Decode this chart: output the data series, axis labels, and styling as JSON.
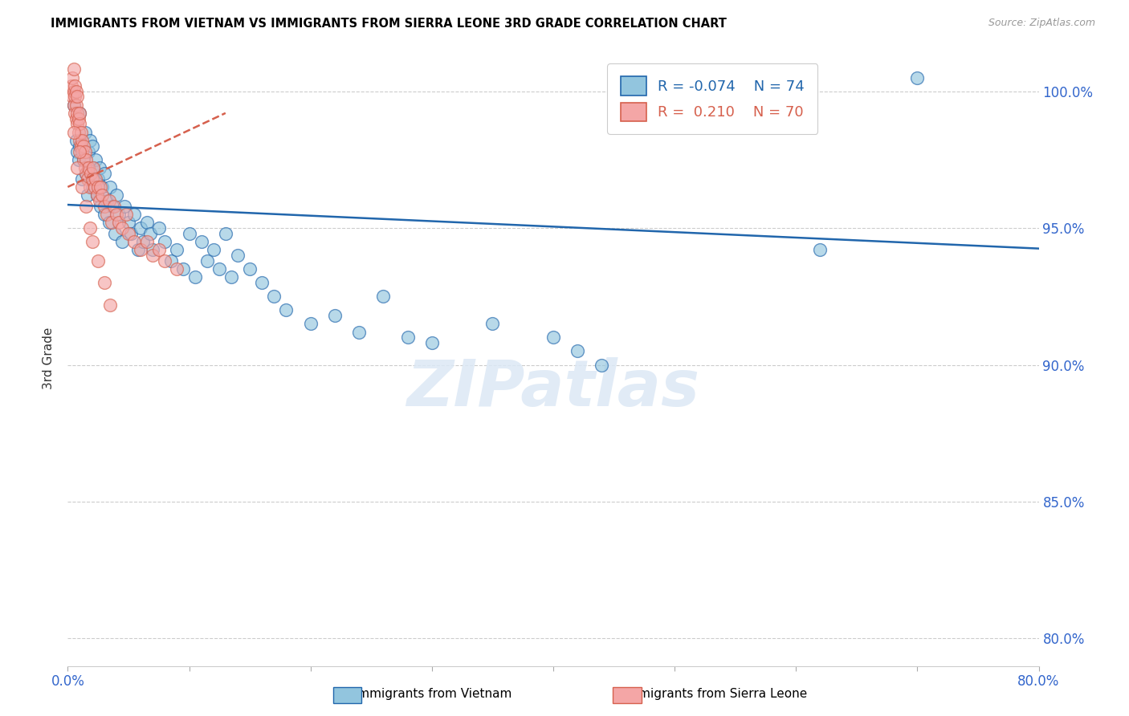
{
  "title": "IMMIGRANTS FROM VIETNAM VS IMMIGRANTS FROM SIERRA LEONE 3RD GRADE CORRELATION CHART",
  "source": "Source: ZipAtlas.com",
  "ylabel": "3rd Grade",
  "xlim": [
    0.0,
    0.8
  ],
  "ylim": [
    79.0,
    101.5
  ],
  "legend_blue_label": "Immigrants from Vietnam",
  "legend_pink_label": "Immigrants from Sierra Leone",
  "legend_r_blue": "-0.074",
  "legend_n_blue": "74",
  "legend_r_pink": "0.210",
  "legend_n_pink": "70",
  "color_blue": "#92C5DE",
  "color_pink": "#F4A6A6",
  "color_blue_dark": "#2166AC",
  "color_pink_dark": "#D6604D",
  "color_axis_ticks": "#3366CC",
  "watermark_text": "ZIPatlas",
  "blue_line_x0": 0.0,
  "blue_line_x1": 0.8,
  "blue_line_y0": 95.85,
  "blue_line_y1": 94.25,
  "pink_line_x0": 0.0,
  "pink_line_x1": 0.13,
  "pink_line_y0": 96.5,
  "pink_line_y1": 99.2,
  "blue_x": [
    0.005,
    0.007,
    0.008,
    0.009,
    0.01,
    0.01,
    0.012,
    0.013,
    0.014,
    0.015,
    0.016,
    0.017,
    0.018,
    0.019,
    0.02,
    0.02,
    0.021,
    0.022,
    0.023,
    0.024,
    0.025,
    0.026,
    0.027,
    0.028,
    0.03,
    0.03,
    0.032,
    0.034,
    0.035,
    0.037,
    0.039,
    0.04,
    0.042,
    0.045,
    0.047,
    0.05,
    0.052,
    0.055,
    0.058,
    0.06,
    0.062,
    0.065,
    0.068,
    0.07,
    0.075,
    0.08,
    0.085,
    0.09,
    0.095,
    0.1,
    0.105,
    0.11,
    0.115,
    0.12,
    0.125,
    0.13,
    0.135,
    0.14,
    0.15,
    0.16,
    0.17,
    0.18,
    0.2,
    0.22,
    0.24,
    0.26,
    0.28,
    0.3,
    0.35,
    0.4,
    0.42,
    0.44,
    0.62,
    0.7
  ],
  "blue_y": [
    99.5,
    98.2,
    97.8,
    97.5,
    98.0,
    99.2,
    96.8,
    97.5,
    98.5,
    97.0,
    96.2,
    97.8,
    98.2,
    97.0,
    96.5,
    98.0,
    97.2,
    96.8,
    97.5,
    96.2,
    96.8,
    97.2,
    95.8,
    96.5,
    95.5,
    97.0,
    96.0,
    95.2,
    96.5,
    95.8,
    94.8,
    96.2,
    95.5,
    94.5,
    95.8,
    95.2,
    94.8,
    95.5,
    94.2,
    95.0,
    94.5,
    95.2,
    94.8,
    94.2,
    95.0,
    94.5,
    93.8,
    94.2,
    93.5,
    94.8,
    93.2,
    94.5,
    93.8,
    94.2,
    93.5,
    94.8,
    93.2,
    94.0,
    93.5,
    93.0,
    92.5,
    92.0,
    91.5,
    91.8,
    91.2,
    92.5,
    91.0,
    90.8,
    91.5,
    91.0,
    90.5,
    90.0,
    94.2,
    100.5
  ],
  "pink_x": [
    0.003,
    0.004,
    0.004,
    0.005,
    0.005,
    0.005,
    0.006,
    0.006,
    0.006,
    0.007,
    0.007,
    0.007,
    0.008,
    0.008,
    0.008,
    0.009,
    0.009,
    0.01,
    0.01,
    0.01,
    0.011,
    0.011,
    0.012,
    0.012,
    0.013,
    0.013,
    0.014,
    0.014,
    0.015,
    0.015,
    0.016,
    0.017,
    0.018,
    0.019,
    0.02,
    0.021,
    0.022,
    0.023,
    0.024,
    0.025,
    0.026,
    0.027,
    0.028,
    0.03,
    0.032,
    0.034,
    0.036,
    0.038,
    0.04,
    0.042,
    0.045,
    0.048,
    0.05,
    0.055,
    0.06,
    0.065,
    0.07,
    0.075,
    0.08,
    0.09,
    0.005,
    0.008,
    0.01,
    0.012,
    0.015,
    0.018,
    0.02,
    0.025,
    0.03,
    0.035
  ],
  "pink_y": [
    100.2,
    99.8,
    100.5,
    99.5,
    100.0,
    100.8,
    99.2,
    99.8,
    100.2,
    99.0,
    99.5,
    100.0,
    98.8,
    99.2,
    99.8,
    98.5,
    99.0,
    98.2,
    98.8,
    99.2,
    98.0,
    98.5,
    97.8,
    98.2,
    97.5,
    98.0,
    97.2,
    97.8,
    97.0,
    97.5,
    96.8,
    97.2,
    96.5,
    97.0,
    96.8,
    97.2,
    96.5,
    96.8,
    96.2,
    96.5,
    96.0,
    96.5,
    96.2,
    95.8,
    95.5,
    96.0,
    95.2,
    95.8,
    95.5,
    95.2,
    95.0,
    95.5,
    94.8,
    94.5,
    94.2,
    94.5,
    94.0,
    94.2,
    93.8,
    93.5,
    98.5,
    97.2,
    97.8,
    96.5,
    95.8,
    95.0,
    94.5,
    93.8,
    93.0,
    92.2
  ]
}
